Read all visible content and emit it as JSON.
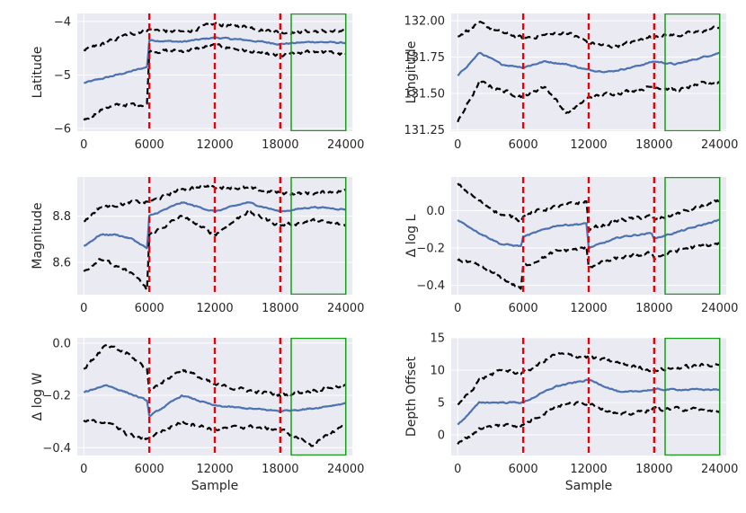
{
  "chart_data": [
    {
      "type": "line",
      "ylabel": "Latitude",
      "xlabel": "",
      "xlim": [
        -600,
        24600
      ],
      "ylim": [
        -6.05,
        -3.85
      ],
      "xticks": [
        0,
        6000,
        12000,
        18000,
        24000
      ],
      "xtick_labels": [
        "0",
        "6000",
        "12000",
        "18000",
        "24000"
      ],
      "yticks": [
        -6,
        -5,
        -4
      ],
      "ytick_labels": [
        "−6",
        "−5",
        "−4"
      ],
      "vlines": [
        6000,
        12000,
        18000
      ],
      "box": [
        19000,
        24000
      ],
      "series": [
        {
          "name": "mean",
          "style": "solid",
          "x": [
            0,
            2000,
            4000,
            5800,
            6000,
            9000,
            12000,
            15000,
            18000,
            21000,
            24000
          ],
          "values": [
            -5.15,
            -5.05,
            -4.95,
            -4.85,
            -4.35,
            -4.38,
            -4.3,
            -4.35,
            -4.42,
            -4.38,
            -4.4
          ]
        },
        {
          "name": "upper",
          "style": "dashed",
          "x": [
            0,
            2000,
            4000,
            5800,
            6000,
            9000,
            12000,
            15000,
            18000,
            21000,
            24000
          ],
          "values": [
            -4.55,
            -4.4,
            -4.25,
            -4.15,
            -4.15,
            -4.2,
            -4.05,
            -4.1,
            -4.2,
            -4.18,
            -4.2
          ]
        },
        {
          "name": "lower",
          "style": "dashed",
          "x": [
            0,
            2000,
            4000,
            5800,
            6000,
            9000,
            12000,
            15000,
            18000,
            21000,
            24000
          ],
          "values": [
            -5.85,
            -5.6,
            -5.55,
            -5.55,
            -4.55,
            -4.55,
            -4.45,
            -4.55,
            -4.65,
            -4.55,
            -4.62
          ]
        }
      ]
    },
    {
      "type": "line",
      "ylabel": "Longitude",
      "xlabel": "",
      "xlim": [
        -600,
        24600
      ],
      "ylim": [
        131.24,
        132.05
      ],
      "xticks": [
        0,
        6000,
        12000,
        18000,
        24000
      ],
      "xtick_labels": [
        "0",
        "6000",
        "12000",
        "18000",
        "24000"
      ],
      "yticks": [
        131.25,
        131.5,
        131.75,
        132.0
      ],
      "ytick_labels": [
        "131.25",
        "131.50",
        "131.75",
        "132.00"
      ],
      "vlines": [
        6000,
        12000,
        18000
      ],
      "box": [
        19000,
        24000
      ],
      "series": [
        {
          "name": "mean",
          "style": "solid",
          "x": [
            0,
            2000,
            4000,
            6000,
            8000,
            10000,
            12000,
            14000,
            16000,
            18000,
            20000,
            22000,
            24000
          ],
          "values": [
            131.62,
            131.78,
            131.7,
            131.68,
            131.72,
            131.7,
            131.66,
            131.65,
            131.68,
            131.72,
            131.7,
            131.74,
            131.78
          ]
        },
        {
          "name": "upper",
          "style": "dashed",
          "x": [
            0,
            2000,
            4000,
            6000,
            8000,
            10000,
            12000,
            14000,
            16000,
            18000,
            20000,
            22000,
            24000
          ],
          "values": [
            131.9,
            131.98,
            131.92,
            131.88,
            131.9,
            131.92,
            131.85,
            131.82,
            131.85,
            131.9,
            131.9,
            131.92,
            131.96
          ]
        },
        {
          "name": "lower",
          "style": "dashed",
          "x": [
            0,
            2000,
            4000,
            6000,
            8000,
            10000,
            12000,
            14000,
            16000,
            18000,
            20000,
            22000,
            24000
          ],
          "values": [
            131.3,
            131.58,
            131.52,
            131.48,
            131.55,
            131.36,
            131.47,
            131.5,
            131.52,
            131.55,
            131.52,
            131.56,
            131.58
          ]
        }
      ]
    },
    {
      "type": "line",
      "ylabel": "Magnitude",
      "xlabel": "",
      "xlim": [
        -600,
        24600
      ],
      "ylim": [
        8.46,
        8.97
      ],
      "xticks": [
        0,
        6000,
        12000,
        18000,
        24000
      ],
      "xtick_labels": [
        "0",
        "6000",
        "12000",
        "18000",
        "24000"
      ],
      "yticks": [
        8.6,
        8.8
      ],
      "ytick_labels": [
        "8.6",
        "8.8"
      ],
      "vlines": [
        6000,
        12000,
        18000
      ],
      "box": [
        19000,
        24000
      ],
      "series": [
        {
          "name": "mean",
          "style": "solid",
          "x": [
            0,
            1500,
            3000,
            4500,
            5800,
            6000,
            9000,
            12000,
            15000,
            18000,
            21000,
            24000
          ],
          "values": [
            8.67,
            8.72,
            8.72,
            8.7,
            8.66,
            8.8,
            8.86,
            8.82,
            8.86,
            8.82,
            8.84,
            8.83
          ]
        },
        {
          "name": "upper",
          "style": "dashed",
          "x": [
            0,
            1500,
            3000,
            4500,
            5800,
            6000,
            9000,
            12000,
            15000,
            18000,
            21000,
            24000
          ],
          "values": [
            8.78,
            8.84,
            8.85,
            8.86,
            8.86,
            8.86,
            8.92,
            8.93,
            8.92,
            8.9,
            8.9,
            8.91
          ]
        },
        {
          "name": "lower",
          "style": "dashed",
          "x": [
            0,
            1500,
            3000,
            4500,
            5800,
            6000,
            9000,
            12000,
            15000,
            18000,
            21000,
            24000
          ],
          "values": [
            8.56,
            8.62,
            8.58,
            8.55,
            8.48,
            8.72,
            8.8,
            8.72,
            8.82,
            8.76,
            8.78,
            8.76
          ]
        }
      ]
    },
    {
      "type": "line",
      "ylabel": "Δ log L",
      "xlabel": "",
      "xlim": [
        -600,
        24600
      ],
      "ylim": [
        -0.45,
        0.18
      ],
      "xticks": [
        0,
        6000,
        12000,
        18000,
        24000
      ],
      "xtick_labels": [
        "0",
        "6000",
        "12000",
        "18000",
        "24000"
      ],
      "yticks": [
        -0.4,
        -0.2,
        0.0
      ],
      "ytick_labels": [
        "−0.4",
        "−0.2",
        "0.0"
      ],
      "vlines": [
        6000,
        12000,
        18000
      ],
      "box": [
        19000,
        24000
      ],
      "series": [
        {
          "name": "mean",
          "style": "solid",
          "x": [
            0,
            2000,
            4000,
            5800,
            6000,
            9000,
            11800,
            12000,
            15000,
            17800,
            18000,
            21000,
            24000
          ],
          "values": [
            -0.05,
            -0.12,
            -0.18,
            -0.19,
            -0.14,
            -0.08,
            -0.07,
            -0.2,
            -0.14,
            -0.12,
            -0.15,
            -0.1,
            -0.05
          ]
        },
        {
          "name": "upper",
          "style": "dashed",
          "x": [
            0,
            2000,
            4000,
            5800,
            6000,
            9000,
            11800,
            12000,
            15000,
            17800,
            18000,
            21000,
            24000
          ],
          "values": [
            0.14,
            0.05,
            -0.02,
            -0.05,
            -0.02,
            0.02,
            0.05,
            -0.1,
            -0.05,
            -0.03,
            -0.05,
            0.0,
            0.05
          ]
        },
        {
          "name": "lower",
          "style": "dashed",
          "x": [
            0,
            2000,
            4000,
            5800,
            6000,
            9000,
            11800,
            12000,
            15000,
            17800,
            18000,
            21000,
            24000
          ],
          "values": [
            -0.26,
            -0.3,
            -0.36,
            -0.42,
            -0.3,
            -0.22,
            -0.2,
            -0.3,
            -0.25,
            -0.23,
            -0.25,
            -0.2,
            -0.18
          ]
        }
      ]
    },
    {
      "type": "line",
      "ylabel": "Δ log W",
      "xlabel": "Sample",
      "xlim": [
        -600,
        24600
      ],
      "ylim": [
        -0.43,
        0.02
      ],
      "xticks": [
        0,
        6000,
        12000,
        18000,
        24000
      ],
      "xtick_labels": [
        "0",
        "6000",
        "12000",
        "18000",
        "24000"
      ],
      "yticks": [
        -0.4,
        -0.2,
        0.0
      ],
      "ytick_labels": [
        "−0.4",
        "−0.2",
        "0.0"
      ],
      "vlines": [
        6000,
        12000,
        18000
      ],
      "box": [
        19000,
        24000
      ],
      "series": [
        {
          "name": "mean",
          "style": "solid",
          "x": [
            0,
            2000,
            4000,
            5800,
            6000,
            9000,
            12000,
            15000,
            18000,
            21000,
            24000
          ],
          "values": [
            -0.19,
            -0.16,
            -0.19,
            -0.22,
            -0.28,
            -0.2,
            -0.24,
            -0.25,
            -0.26,
            -0.25,
            -0.23
          ]
        },
        {
          "name": "upper",
          "style": "dashed",
          "x": [
            0,
            2000,
            4000,
            5800,
            6000,
            9000,
            12000,
            15000,
            18000,
            21000,
            24000
          ],
          "values": [
            -0.1,
            -0.01,
            -0.04,
            -0.1,
            -0.18,
            -0.1,
            -0.16,
            -0.18,
            -0.2,
            -0.18,
            -0.16
          ]
        },
        {
          "name": "lower",
          "style": "dashed",
          "x": [
            0,
            2000,
            4000,
            5800,
            6000,
            9000,
            12000,
            15000,
            18000,
            21000,
            24000
          ],
          "values": [
            -0.3,
            -0.3,
            -0.35,
            -0.37,
            -0.36,
            -0.3,
            -0.33,
            -0.32,
            -0.33,
            -0.39,
            -0.31
          ]
        }
      ]
    },
    {
      "type": "line",
      "ylabel": "Depth Offset",
      "xlabel": "Sample",
      "xlim": [
        -600,
        24600
      ],
      "ylim": [
        -3.2,
        15
      ],
      "xticks": [
        0,
        6000,
        12000,
        18000,
        24000
      ],
      "xtick_labels": [
        "0",
        "6000",
        "12000",
        "18000",
        "24000"
      ],
      "yticks": [
        0,
        5,
        10,
        15
      ],
      "ytick_labels": [
        "0",
        "5",
        "10",
        "15"
      ],
      "vlines": [
        6000,
        12000,
        18000
      ],
      "box": [
        19000,
        24000
      ],
      "series": [
        {
          "name": "mean",
          "style": "solid",
          "x": [
            0,
            2000,
            4000,
            6000,
            9000,
            12000,
            15000,
            18000,
            21000,
            24000
          ],
          "values": [
            1.5,
            5.0,
            5.0,
            5.0,
            7.5,
            8.5,
            6.5,
            7.0,
            7.0,
            7.0
          ]
        },
        {
          "name": "upper",
          "style": "dashed",
          "x": [
            0,
            2000,
            4000,
            6000,
            9000,
            12000,
            15000,
            18000,
            21000,
            24000
          ],
          "values": [
            4.5,
            8.5,
            10.0,
            9.5,
            12.5,
            12.0,
            11.0,
            10.0,
            10.5,
            11.0
          ]
        },
        {
          "name": "lower",
          "style": "dashed",
          "x": [
            0,
            2000,
            4000,
            6000,
            9000,
            12000,
            15000,
            18000,
            21000,
            24000
          ],
          "values": [
            -1.5,
            1.0,
            1.5,
            1.5,
            4.5,
            5.0,
            3.0,
            4.0,
            4.0,
            3.5
          ]
        }
      ]
    }
  ],
  "colors": {
    "mean": "#4c72b0",
    "band": "#000000",
    "vline": "#e8000b",
    "box": "#1a9e1a",
    "plot_bg": "#eaeaf2",
    "grid": "#ffffff",
    "text": "#262626"
  }
}
